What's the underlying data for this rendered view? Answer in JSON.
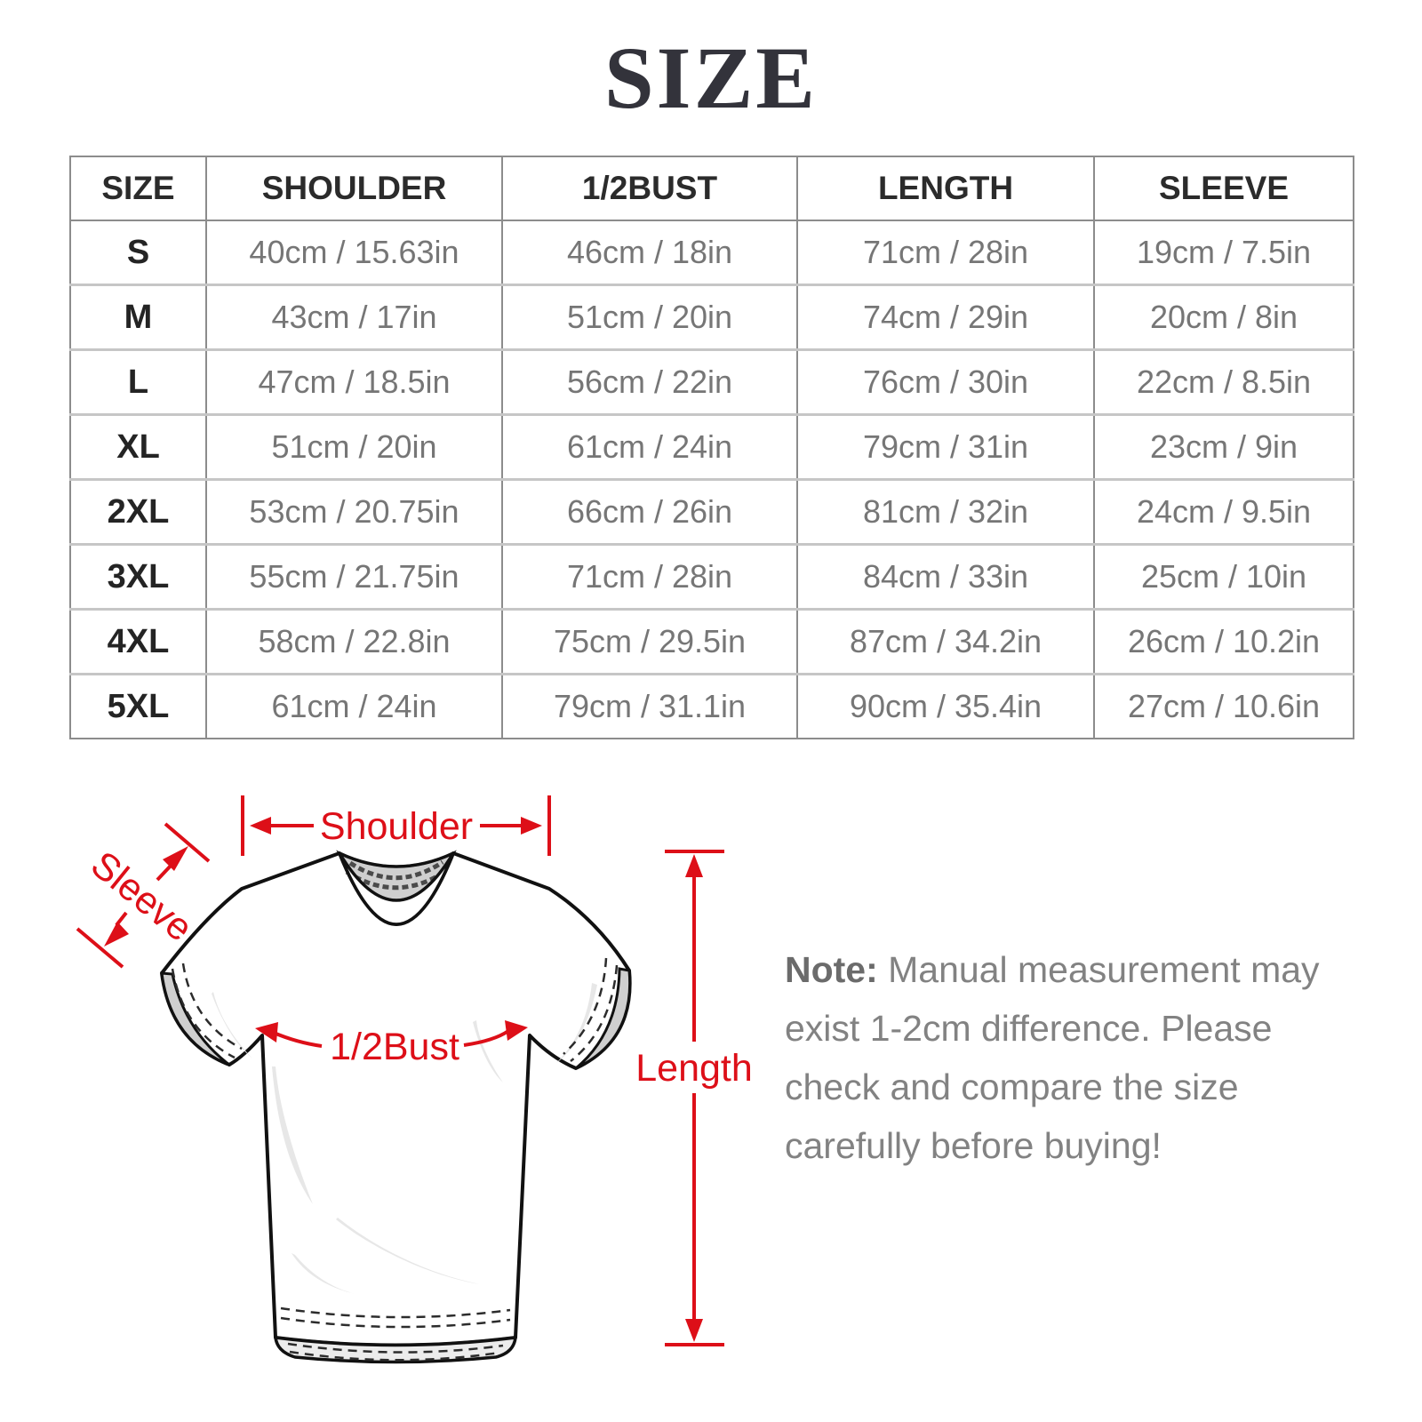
{
  "title": "SIZE",
  "table": {
    "columns": [
      "SIZE",
      "SHOULDER",
      "1/2BUST",
      "LENGTH",
      "SLEEVE"
    ],
    "rows": [
      [
        "S",
        "40cm / 15.63in",
        "46cm / 18in",
        "71cm / 28in",
        "19cm / 7.5in"
      ],
      [
        "M",
        "43cm / 17in",
        "51cm / 20in",
        "74cm / 29in",
        "20cm / 8in"
      ],
      [
        "L",
        "47cm / 18.5in",
        "56cm / 22in",
        "76cm / 30in",
        "22cm / 8.5in"
      ],
      [
        "XL",
        "51cm / 20in",
        "61cm / 24in",
        "79cm / 31in",
        "23cm / 9in"
      ],
      [
        "2XL",
        "53cm / 20.75in",
        "66cm / 26in",
        "81cm / 32in",
        "24cm / 9.5in"
      ],
      [
        "3XL",
        "55cm / 21.75in",
        "71cm / 28in",
        "84cm / 33in",
        "25cm / 10in"
      ],
      [
        "4XL",
        "58cm / 22.8in",
        "75cm / 29.5in",
        "87cm / 34.2in",
        "26cm / 10.2in"
      ],
      [
        "5XL",
        "61cm / 24in",
        "79cm / 31.1in",
        "90cm / 35.4in",
        "27cm / 10.6in"
      ]
    ]
  },
  "diagram": {
    "shoulder_label": "Shoulder",
    "sleeve_label": "Sleeve",
    "bust_label": "1/2Bust",
    "length_label": "Length"
  },
  "note": {
    "prefix": "Note:",
    "body": " Manual measurement may exist 1-2cm difference. Please check and compare the size carefully before buying!"
  },
  "colors": {
    "accent": "#dd0f18",
    "title": "#33333b",
    "header_text": "#2b2b2b",
    "cell_text": "#767676",
    "table_border": "#8c8c8c",
    "row_divider": "#c6c6c6",
    "note_text": "#828282",
    "note_bold": "#6b6b6b",
    "shirt_outline": "#111111",
    "shirt_shadow": "#e7e7e7",
    "collar_gray": "#cfcfcf"
  }
}
